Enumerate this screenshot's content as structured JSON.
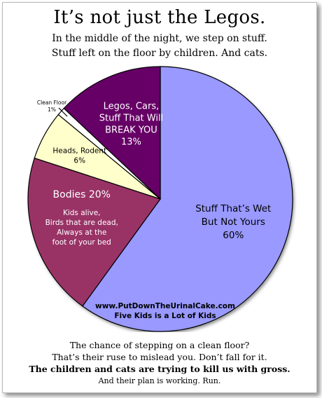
{
  "title": "It’s not just the Legos.",
  "subtitle_lines": [
    "In the middle of the night, we step on stuff.",
    "Stuff left on the floor by children. And cats."
  ],
  "footer_lines": [
    "The chance of stepping on a clean floor?",
    "That’s their ruse to mislead you. Don’t fall for it.",
    "The children and cats are trying to kill us with gross.",
    "And their plan is working. Run."
  ],
  "watermark": {
    "line1": "www.PutDownTheUrinalCake.com",
    "line2": "Five Kids is a Lot of Kids"
  },
  "colors": {
    "wet": "#9999ff",
    "bodies": "#993366",
    "heads": "#ffffcc",
    "clean": "#ffffff",
    "legos": "#660066"
  },
  "chart_data": {
    "type": "pie",
    "title": "",
    "slices": [
      {
        "key": "wet",
        "label_lines": [
          "Stuff That’s Wet",
          "But Not Yours",
          "60%"
        ],
        "value": 60
      },
      {
        "key": "bodies",
        "label_lines": [
          "Bodies  20%"
        ],
        "sub_lines": [
          "Kids alive,",
          "Birds that are dead,",
          "Always at the",
          "foot of your bed"
        ],
        "value": 20
      },
      {
        "key": "heads",
        "label_lines": [
          "Heads, Rodent",
          "6%"
        ],
        "value": 6
      },
      {
        "key": "clean",
        "label_lines": [
          "Clean Floor",
          "1%"
        ],
        "value": 1
      },
      {
        "key": "legos",
        "label_lines": [
          "Legos, Cars,",
          "Stuff That Will",
          "BREAK YOU",
          "13%"
        ],
        "value": 13
      }
    ]
  }
}
